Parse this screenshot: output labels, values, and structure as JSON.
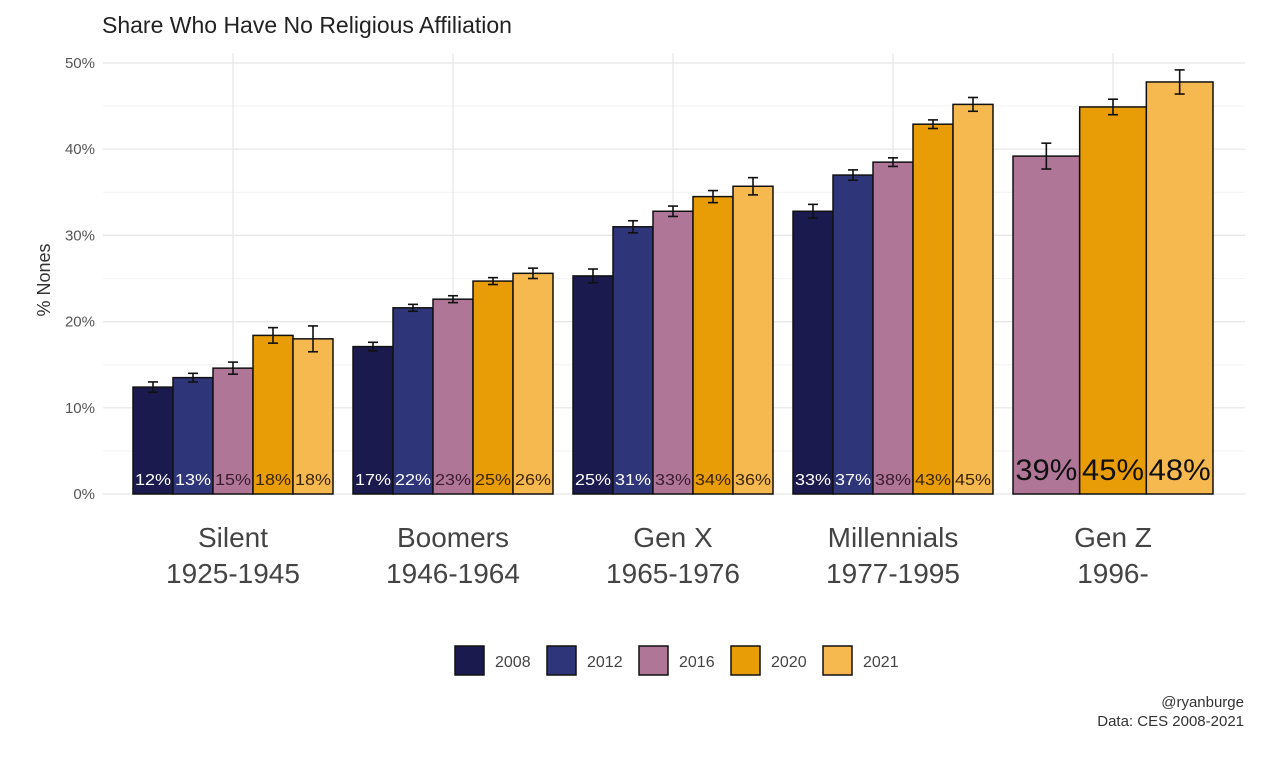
{
  "chart_data": {
    "type": "bar",
    "title": "Share Who Have No Religious Affiliation",
    "xlabel": "",
    "ylabel": "% Nones",
    "ylim": [
      0,
      50
    ],
    "yticks": [
      0,
      10,
      20,
      30,
      40,
      50
    ],
    "ytick_labels": [
      "0%",
      "10%",
      "20%",
      "30%",
      "40%",
      "50%"
    ],
    "grid": true,
    "legend_position": "bottom",
    "categories": [
      {
        "name": "Silent",
        "years": "1925-1945"
      },
      {
        "name": "Boomers",
        "years": "1946-1964"
      },
      {
        "name": "Gen X",
        "years": "1965-1976"
      },
      {
        "name": "Millennials",
        "years": "1977-1995"
      },
      {
        "name": "Gen Z",
        "years": "1996-"
      }
    ],
    "series": [
      {
        "name": "2008",
        "color": "#1b1a4f",
        "label_color": "#ffffff",
        "values": [
          12.4,
          17.1,
          25.3,
          32.8,
          null
        ],
        "errors": [
          0.6,
          0.5,
          0.8,
          0.8,
          null
        ],
        "labels": [
          "12%",
          "17%",
          "25%",
          "33%",
          null
        ]
      },
      {
        "name": "2012",
        "color": "#2f3579",
        "label_color": "#ffffff",
        "values": [
          13.5,
          21.6,
          31.0,
          37.0,
          null
        ],
        "errors": [
          0.5,
          0.4,
          0.7,
          0.6,
          null
        ],
        "labels": [
          "13%",
          "22%",
          "31%",
          "37%",
          null
        ]
      },
      {
        "name": "2016",
        "color": "#b07698",
        "label_color": "#3a1a2e",
        "values": [
          14.6,
          22.6,
          32.8,
          38.5,
          39.2
        ],
        "errors": [
          0.7,
          0.4,
          0.6,
          0.5,
          1.5
        ],
        "labels": [
          "15%",
          "23%",
          "33%",
          "38%",
          "39%"
        ]
      },
      {
        "name": "2020",
        "color": "#e89c05",
        "label_color": "#3a2400",
        "values": [
          18.4,
          24.7,
          34.5,
          42.9,
          44.9
        ],
        "errors": [
          0.9,
          0.4,
          0.7,
          0.5,
          0.9
        ],
        "labels": [
          "18%",
          "25%",
          "34%",
          "43%",
          "45%"
        ]
      },
      {
        "name": "2021",
        "color": "#f5b94f",
        "label_color": "#3a2400",
        "values": [
          18.0,
          25.6,
          35.7,
          45.2,
          47.8
        ],
        "errors": [
          1.5,
          0.6,
          1.0,
          0.8,
          1.4
        ],
        "labels": [
          "18%",
          "26%",
          "36%",
          "45%",
          "48%"
        ]
      }
    ]
  },
  "caption": {
    "author": "@ryanburge",
    "source": "Data: CES 2008-2021"
  }
}
